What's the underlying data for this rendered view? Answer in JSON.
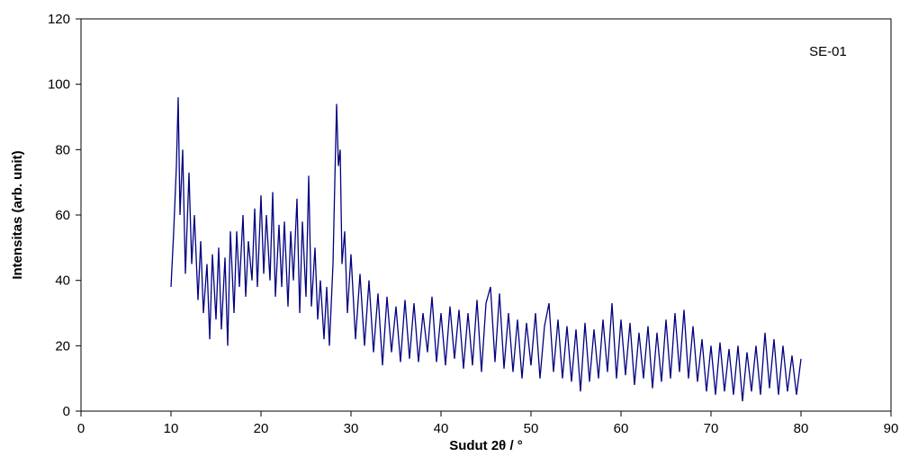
{
  "chart_data": {
    "type": "line",
    "annotation": "SE-01",
    "xlabel": "Sudut 2θ / °",
    "ylabel": "Intensitas (arb. unit)",
    "xlim": [
      0,
      90
    ],
    "xticks": [
      0,
      10,
      20,
      30,
      40,
      50,
      60,
      70,
      80,
      90
    ],
    "ylim": [
      0,
      120
    ],
    "yticks": [
      0,
      20,
      40,
      60,
      80,
      100,
      120
    ],
    "series": [
      {
        "color": "#000080",
        "x": [
          10,
          10.3,
          10.6,
          10.8,
          11,
          11.3,
          11.6,
          12,
          12.3,
          12.6,
          13,
          13.3,
          13.6,
          14,
          14.3,
          14.6,
          15,
          15.3,
          15.6,
          16,
          16.3,
          16.6,
          17,
          17.3,
          17.6,
          18,
          18.3,
          18.6,
          19,
          19.3,
          19.6,
          20,
          20.3,
          20.6,
          21,
          21.3,
          21.6,
          22,
          22.3,
          22.6,
          23,
          23.3,
          23.6,
          24,
          24.3,
          24.6,
          25,
          25.3,
          25.6,
          26,
          26.3,
          26.6,
          27,
          27.3,
          27.6,
          28,
          28.2,
          28.4,
          28.6,
          28.8,
          29,
          29.3,
          29.6,
          30,
          30.5,
          31,
          31.5,
          32,
          32.5,
          33,
          33.5,
          34,
          34.5,
          35,
          35.5,
          36,
          36.5,
          37,
          37.5,
          38,
          38.5,
          39,
          39.5,
          40,
          40.5,
          41,
          41.5,
          42,
          42.5,
          43,
          43.5,
          44,
          44.5,
          45,
          45.5,
          46,
          46.5,
          47,
          47.5,
          48,
          48.5,
          49,
          49.5,
          50,
          50.5,
          51,
          51.5,
          52,
          52.5,
          53,
          53.5,
          54,
          54.5,
          55,
          55.5,
          56,
          56.5,
          57,
          57.5,
          58,
          58.5,
          59,
          59.5,
          60,
          60.5,
          61,
          61.5,
          62,
          62.5,
          63,
          63.5,
          64,
          64.5,
          65,
          65.5,
          66,
          66.5,
          67,
          67.5,
          68,
          68.5,
          69,
          69.5,
          70,
          70.5,
          71,
          71.5,
          72,
          72.5,
          73,
          73.5,
          74,
          74.5,
          75,
          75.5,
          76,
          76.5,
          77,
          77.5,
          78,
          78.5,
          79,
          79.5,
          80
        ],
        "values": [
          38,
          55,
          75,
          96,
          60,
          80,
          42,
          73,
          45,
          60,
          34,
          52,
          30,
          45,
          22,
          48,
          28,
          50,
          25,
          47,
          20,
          55,
          30,
          55,
          38,
          60,
          35,
          52,
          40,
          62,
          38,
          66,
          42,
          60,
          40,
          67,
          35,
          57,
          38,
          58,
          32,
          55,
          40,
          65,
          30,
          58,
          35,
          72,
          32,
          50,
          28,
          40,
          22,
          38,
          20,
          45,
          70,
          94,
          75,
          80,
          45,
          55,
          30,
          48,
          22,
          42,
          20,
          40,
          18,
          36,
          14,
          35,
          18,
          32,
          15,
          34,
          16,
          33,
          15,
          30,
          18,
          35,
          15,
          30,
          14,
          32,
          16,
          31,
          13,
          30,
          14,
          34,
          12,
          33,
          38,
          15,
          36,
          13,
          30,
          12,
          28,
          10,
          27,
          14,
          30,
          10,
          26,
          33,
          12,
          28,
          10,
          26,
          9,
          25,
          6,
          27,
          9,
          25,
          10,
          28,
          12,
          33,
          10,
          28,
          11,
          27,
          8,
          24,
          10,
          26,
          7,
          24,
          9,
          28,
          10,
          30,
          12,
          31,
          10,
          26,
          9,
          22,
          6,
          20,
          5,
          21,
          6,
          19,
          5,
          20,
          3,
          18,
          6,
          20,
          5,
          24,
          7,
          22,
          5,
          20,
          6,
          17,
          5,
          16
        ]
      }
    ]
  }
}
